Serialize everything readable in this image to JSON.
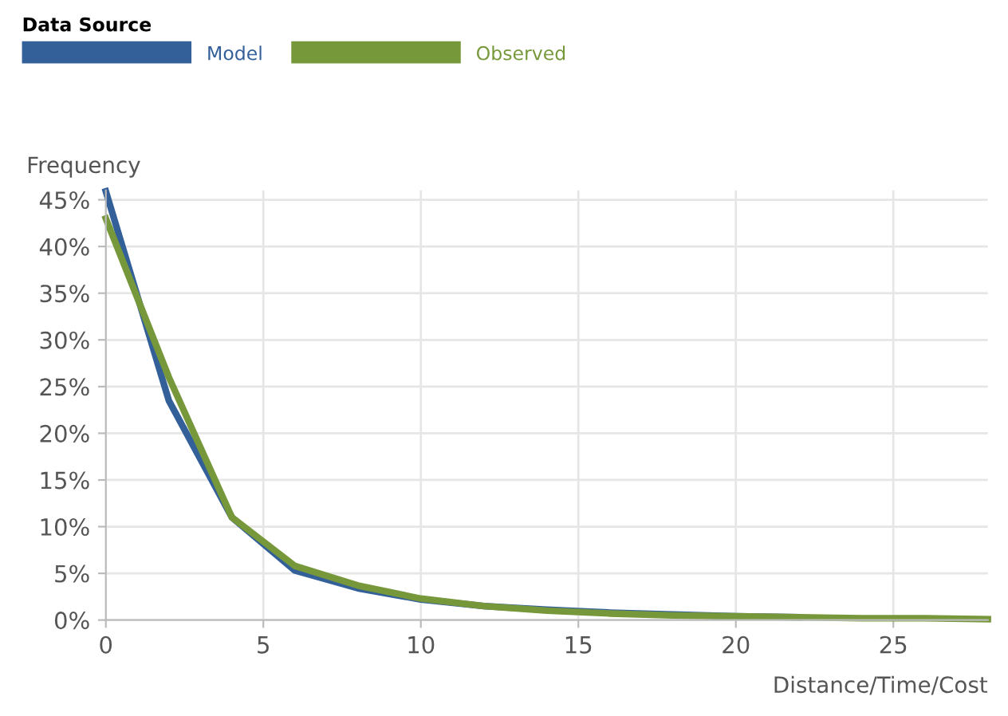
{
  "chart_data": {
    "type": "line",
    "xlabel": "Distance/Time/Cost",
    "ylabel": "Frequency",
    "legend_title": "Data Source",
    "legend": "top left",
    "grid": true,
    "marker": "none",
    "line_style": "solid",
    "x": [
      0,
      2,
      4,
      6,
      8,
      10,
      12,
      14,
      16,
      18,
      20,
      22,
      24,
      26,
      28
    ],
    "series": [
      {
        "name": "Model",
        "color": "#34609a",
        "values": [
          45.9,
          23.5,
          11,
          5.3,
          3.4,
          2.2,
          1.5,
          1.1,
          0.8,
          0.6,
          0.4,
          0.3,
          null,
          null,
          null
        ]
      },
      {
        "name": "Observed",
        "color": "#77983a",
        "values": [
          43,
          26,
          11,
          5.8,
          3.7,
          2.3,
          1.5,
          1.0,
          0.7,
          0.5,
          0.4,
          0.3,
          0.2,
          0.2,
          0.1
        ]
      }
    ],
    "xlim": [
      0,
      28
    ],
    "ylim": [
      0,
      46
    ],
    "xticks": [
      0,
      5,
      10,
      15,
      20,
      25
    ],
    "yticks": [
      {
        "value": 0,
        "label": "0%"
      },
      {
        "value": 5,
        "label": "5%"
      },
      {
        "value": 10,
        "label": "10%"
      },
      {
        "value": 15,
        "label": "15%"
      },
      {
        "value": 20,
        "label": "20%"
      },
      {
        "value": 25,
        "label": "25%"
      },
      {
        "value": 30,
        "label": "30%"
      },
      {
        "value": 35,
        "label": "35%"
      },
      {
        "value": 40,
        "label": "40%"
      },
      {
        "value": 45,
        "label": "45%"
      }
    ]
  }
}
